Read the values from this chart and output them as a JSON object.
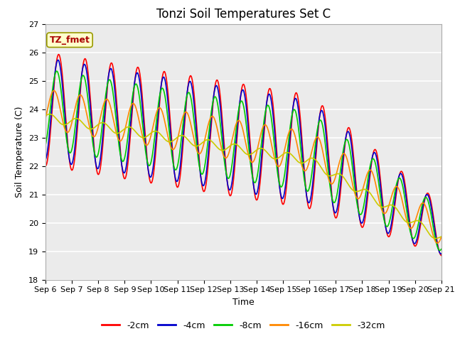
{
  "title": "Tonzi Soil Temperatures Set C",
  "xlabel": "Time",
  "ylabel": "Soil Temperature (C)",
  "ylim": [
    18.0,
    27.0
  ],
  "yticks": [
    18.0,
    19.0,
    20.0,
    21.0,
    22.0,
    23.0,
    24.0,
    25.0,
    26.0,
    27.0
  ],
  "xtick_labels": [
    "Sep 6",
    "Sep 7",
    "Sep 8",
    "Sep 9",
    "Sep 10",
    "Sep 11",
    "Sep 12",
    "Sep 13",
    "Sep 14",
    "Sep 15",
    "Sep 16",
    "Sep 17",
    "Sep 18",
    "Sep 19",
    "Sep 20",
    "Sep 21"
  ],
  "series_colors": [
    "#ff0000",
    "#0000cc",
    "#00cc00",
    "#ff8800",
    "#cccc00"
  ],
  "series_labels": [
    "-2cm",
    "-4cm",
    "-8cm",
    "-16cm",
    "-32cm"
  ],
  "legend_label": "TZ_fmet",
  "legend_bg": "#ffffcc",
  "legend_border": "#999900",
  "plot_bg": "#ebebeb",
  "linewidth": 1.2,
  "title_fontsize": 12,
  "axis_fontsize": 9,
  "tick_fontsize": 8
}
